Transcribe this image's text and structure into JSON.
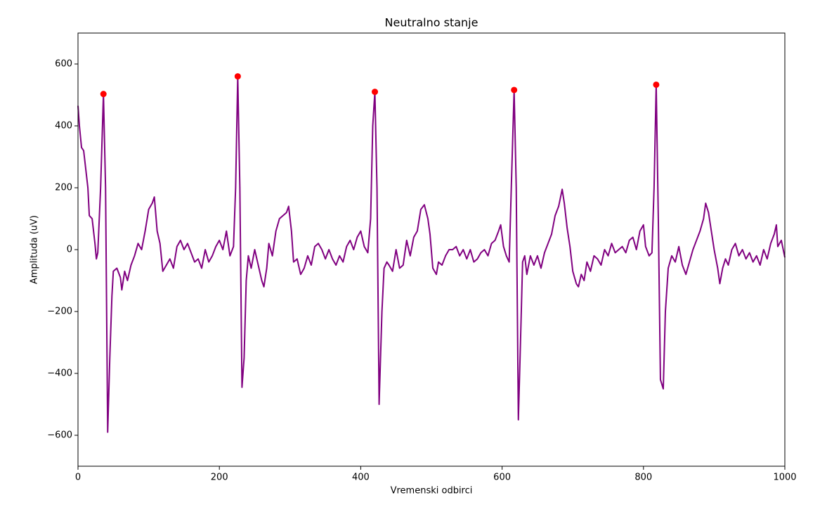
{
  "chart_data": {
    "type": "line",
    "title": "Neutralno stanje",
    "x_label": "Vremenski odbirci",
    "y_label": "Amplituda (uV)",
    "xlim": [
      0,
      1000
    ],
    "ylim": [
      -700,
      700
    ],
    "xticks": [
      0,
      200,
      400,
      600,
      800,
      1000
    ],
    "yticks": [
      {
        "value": -600,
        "label": "−600"
      },
      {
        "value": -400,
        "label": "−400"
      },
      {
        "value": -200,
        "label": "−200"
      },
      0,
      200,
      400,
      600
    ],
    "series": [
      {
        "color": "#800080",
        "marker": "none",
        "x": [
          0,
          2,
          5,
          8,
          10,
          14,
          16,
          20,
          24,
          26,
          28,
          32,
          36,
          39,
          42,
          45,
          48,
          50,
          55,
          60,
          62,
          66,
          70,
          75,
          80,
          85,
          90,
          95,
          100,
          105,
          108,
          112,
          116,
          120,
          125,
          130,
          135,
          140,
          145,
          150,
          155,
          160,
          165,
          170,
          175,
          180,
          185,
          190,
          195,
          200,
          205,
          210,
          215,
          220,
          223,
          226,
          229,
          232,
          235,
          238,
          241,
          245,
          250,
          255,
          260,
          263,
          267,
          270,
          275,
          280,
          285,
          290,
          295,
          298,
          302,
          305,
          310,
          315,
          320,
          325,
          330,
          335,
          340,
          345,
          350,
          355,
          360,
          365,
          370,
          375,
          380,
          385,
          390,
          395,
          400,
          405,
          410,
          414,
          417,
          420,
          423,
          426,
          430,
          433,
          437,
          440,
          445,
          450,
          455,
          460,
          465,
          470,
          475,
          480,
          485,
          490,
          495,
          498,
          502,
          507,
          510,
          515,
          520,
          525,
          530,
          535,
          540,
          545,
          550,
          555,
          560,
          565,
          570,
          575,
          580,
          585,
          590,
          595,
          598,
          602,
          606,
          610,
          613,
          617,
          620,
          623,
          626,
          629,
          632,
          635,
          640,
          645,
          650,
          655,
          660,
          665,
          670,
          675,
          680,
          685,
          688,
          692,
          696,
          700,
          705,
          708,
          712,
          716,
          720,
          725,
          730,
          735,
          740,
          745,
          750,
          755,
          760,
          765,
          770,
          775,
          780,
          785,
          790,
          795,
          800,
          803,
          808,
          812,
          815,
          818,
          821,
          824,
          828,
          831,
          835,
          840,
          845,
          850,
          855,
          860,
          865,
          870,
          875,
          880,
          885,
          888,
          892,
          896,
          900,
          905,
          908,
          912,
          916,
          920,
          925,
          930,
          935,
          940,
          945,
          950,
          955,
          960,
          965,
          970,
          975,
          980,
          985,
          988,
          990,
          995,
          1000
        ],
        "values": [
          465,
          400,
          330,
          320,
          280,
          200,
          110,
          100,
          20,
          -30,
          -10,
          200,
          503,
          200,
          -590,
          -350,
          -150,
          -70,
          -60,
          -90,
          -130,
          -70,
          -100,
          -50,
          -20,
          20,
          0,
          60,
          130,
          150,
          170,
          60,
          20,
          -70,
          -50,
          -30,
          -60,
          10,
          30,
          0,
          20,
          -10,
          -40,
          -30,
          -60,
          0,
          -40,
          -20,
          10,
          30,
          0,
          60,
          -20,
          10,
          200,
          560,
          200,
          -445,
          -350,
          -100,
          -20,
          -60,
          0,
          -50,
          -100,
          -120,
          -60,
          20,
          -20,
          60,
          100,
          110,
          120,
          140,
          60,
          -40,
          -30,
          -80,
          -60,
          -20,
          -50,
          10,
          20,
          0,
          -30,
          0,
          -30,
          -50,
          -20,
          -40,
          10,
          30,
          0,
          40,
          60,
          10,
          -10,
          100,
          400,
          510,
          200,
          -500,
          -200,
          -60,
          -40,
          -50,
          -70,
          0,
          -60,
          -50,
          30,
          -20,
          40,
          60,
          130,
          145,
          100,
          50,
          -60,
          -80,
          -40,
          -50,
          -20,
          0,
          0,
          10,
          -20,
          0,
          -30,
          0,
          -40,
          -30,
          -10,
          0,
          -20,
          20,
          30,
          60,
          80,
          10,
          -20,
          -40,
          200,
          516,
          200,
          -550,
          -300,
          -40,
          -20,
          -80,
          -20,
          -50,
          -20,
          -60,
          -10,
          20,
          50,
          110,
          140,
          195,
          150,
          70,
          10,
          -70,
          -110,
          -120,
          -80,
          -100,
          -40,
          -70,
          -20,
          -30,
          -50,
          0,
          -20,
          20,
          -10,
          0,
          10,
          -10,
          30,
          40,
          0,
          60,
          80,
          10,
          -20,
          -10,
          200,
          533,
          100,
          -420,
          -450,
          -200,
          -60,
          -20,
          -40,
          10,
          -50,
          -80,
          -40,
          0,
          30,
          60,
          100,
          150,
          120,
          60,
          0,
          -60,
          -110,
          -60,
          -30,
          -50,
          0,
          20,
          -20,
          0,
          -30,
          -10,
          -40,
          -20,
          -50,
          0,
          -30,
          20,
          50,
          80,
          10,
          30,
          -25
        ]
      },
      {
        "color": "#ff0000",
        "marker": "o",
        "x": [
          36,
          226,
          420,
          617,
          818
        ],
        "values": [
          503,
          560,
          510,
          516,
          533
        ]
      }
    ]
  }
}
